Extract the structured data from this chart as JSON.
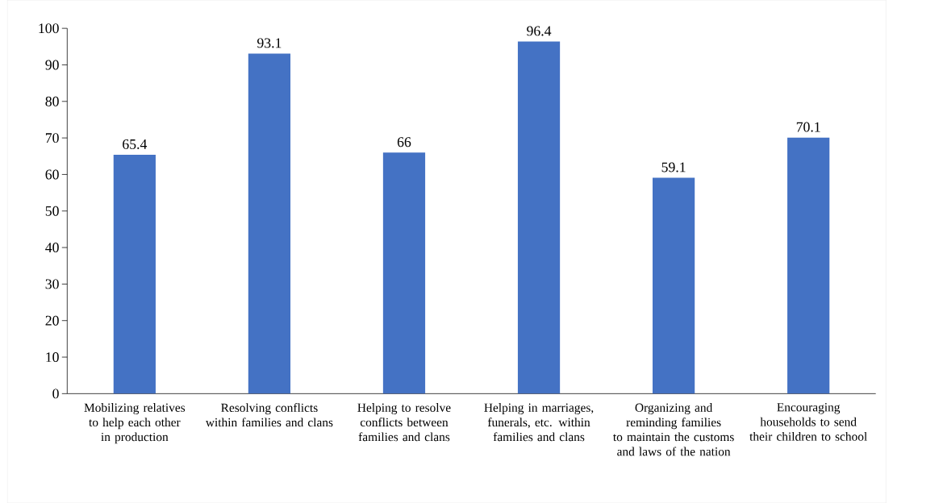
{
  "chart_data": {
    "type": "bar",
    "categories": [
      "Mobilizing relatives to help each other in production",
      "Resolving conflicts within families and clans",
      "Helping to resolve conflicts between families and clans",
      "Helping in marriages, funerals, etc. within families and clans",
      "Organizing and reminding families to maintain the customs and laws of the nation",
      "Encouraging households to send their children to school"
    ],
    "values": [
      65.4,
      93.1,
      66,
      96.4,
      59.1,
      70.1
    ],
    "color": "#4472c4",
    "data_labels": true,
    "ylim": [
      0,
      100
    ],
    "yticks": [
      0,
      10,
      20,
      30,
      40,
      50,
      60,
      70,
      80,
      90,
      100
    ]
  }
}
